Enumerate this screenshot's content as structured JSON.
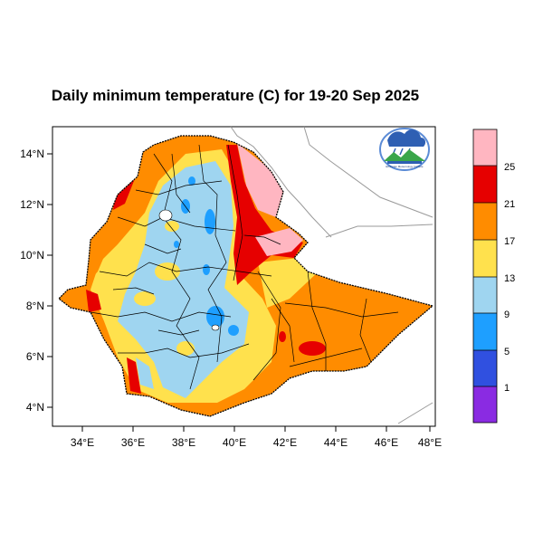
{
  "title": "Daily minimum temperature (C) for 19-20 Sep 2025",
  "map": {
    "lat_labels": [
      "14°N",
      "12°N",
      "10°N",
      "8°N",
      "6°N",
      "4°N"
    ],
    "lon_labels": [
      "34°E",
      "36°E",
      "38°E",
      "40°E",
      "42°E",
      "44°E",
      "46°E",
      "48°E"
    ],
    "lon_range": [
      33,
      48.2
    ],
    "lat_range": [
      3.2,
      15.0
    ]
  },
  "legend": {
    "levels": [
      "1",
      "5",
      "9",
      "13",
      "17",
      "21",
      "25"
    ],
    "colors": [
      "#8a2be2",
      "#3050e0",
      "#1e9fff",
      "#9fd5f0",
      "#ffe14d",
      "#ff8c00",
      "#e60000",
      "#ffb6c1"
    ]
  },
  "logo": {
    "text": "Ethiopian Meteorology Institute"
  },
  "palette": {
    "orange": "#ff8c00",
    "yellow": "#ffe14d",
    "lightblue": "#9fd5f0",
    "blue": "#1e9fff",
    "red": "#e60000",
    "pink": "#ffb6c1"
  }
}
